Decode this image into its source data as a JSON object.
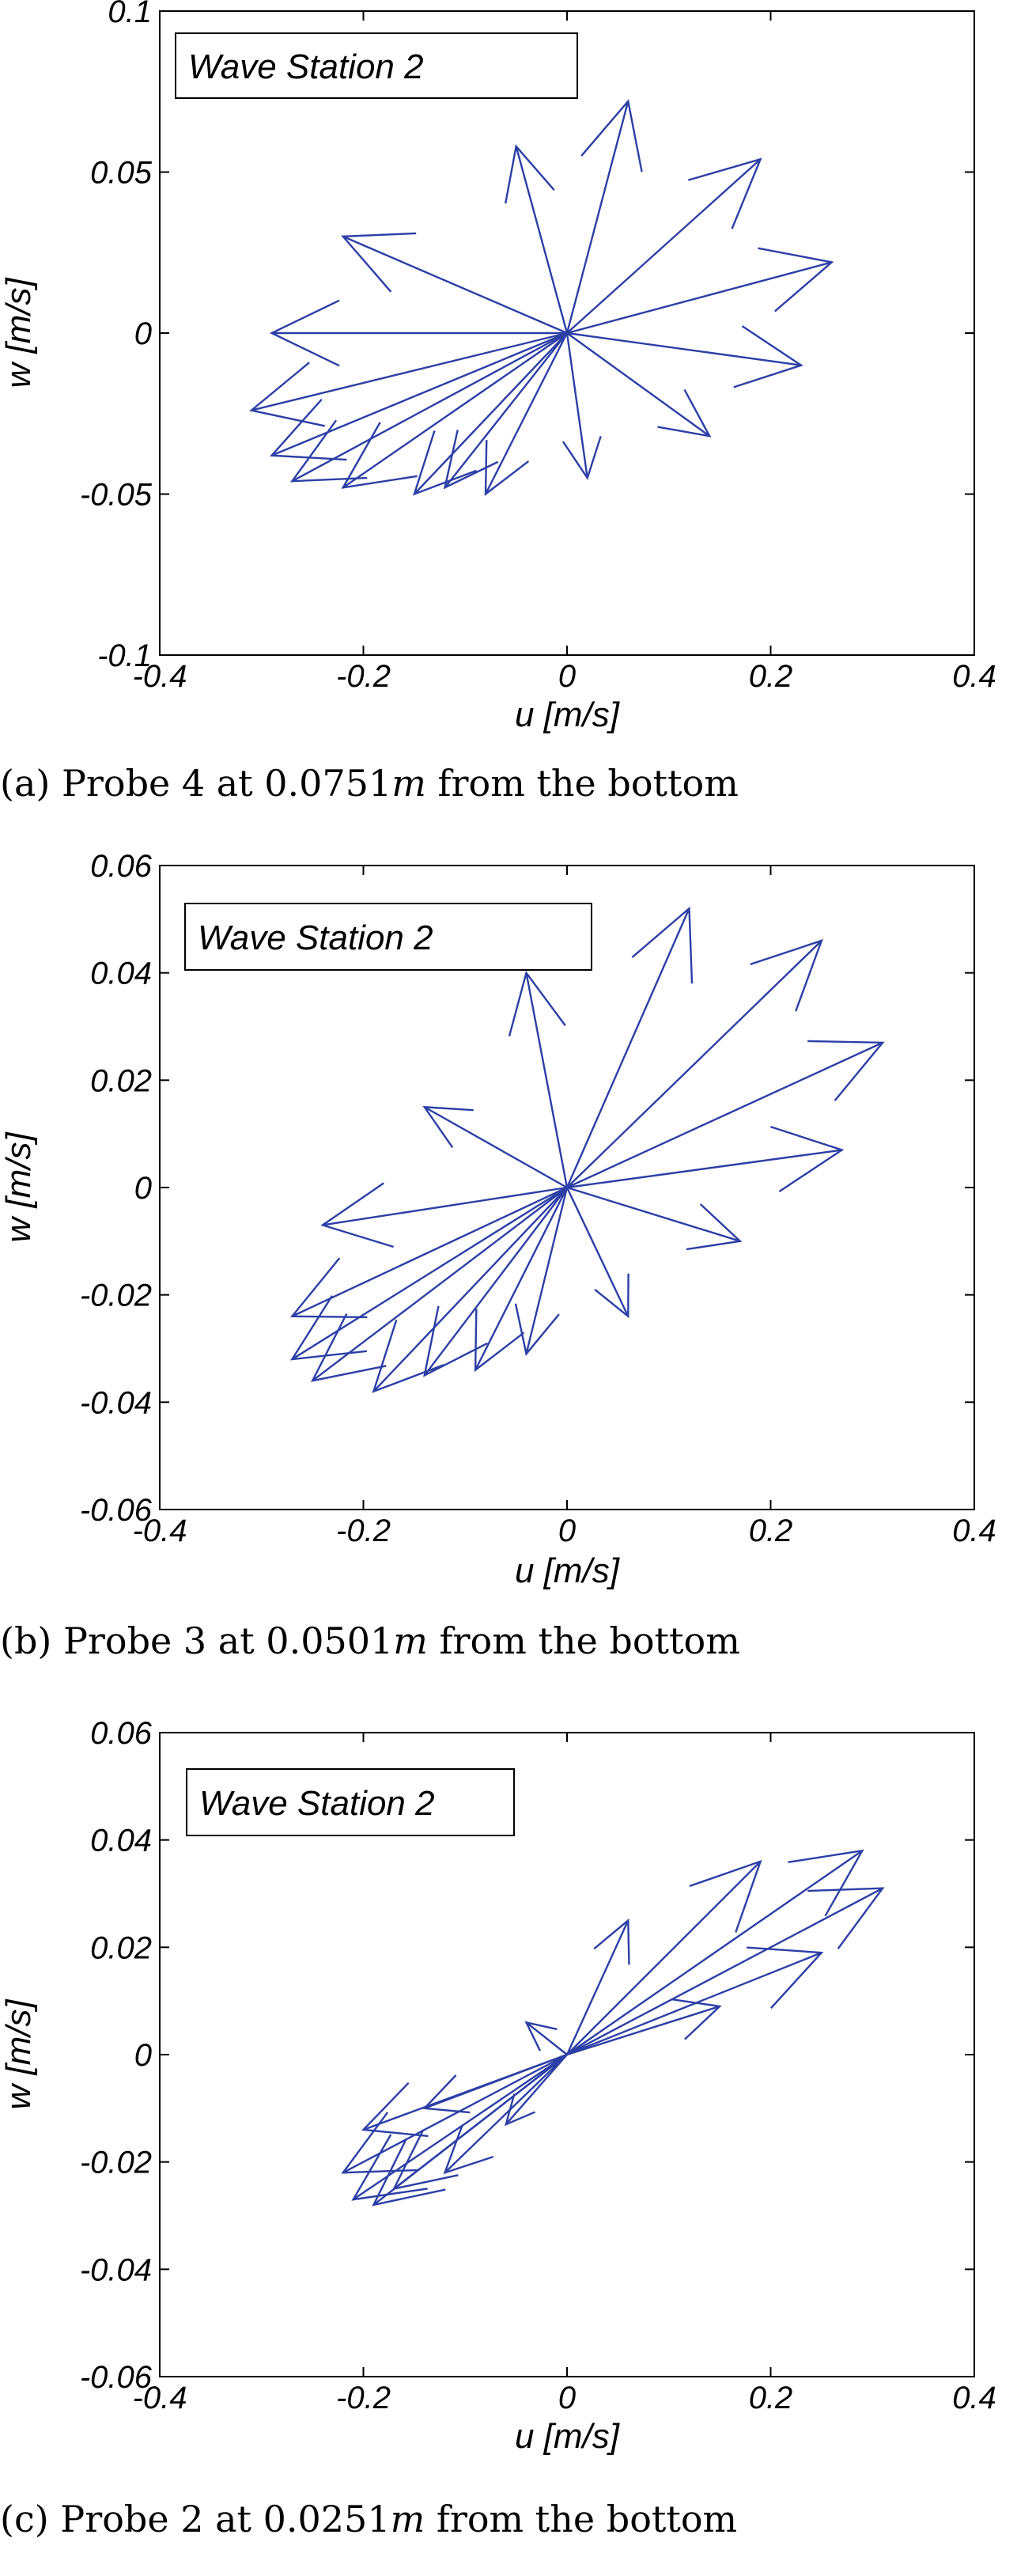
{
  "chart_data": [
    {
      "type": "quiver",
      "legend": "Wave Station 2",
      "xlabel": "u [m/s]",
      "ylabel": "w [m/s]",
      "xlim": [
        -0.4,
        0.4
      ],
      "ylim": [
        -0.1,
        0.1
      ],
      "xticks": [
        "-0.4",
        "-0.2",
        "0",
        "0.2",
        "0.4"
      ],
      "yticks": [
        "-0.1",
        "-0.05",
        "0",
        "0.05",
        "0.1"
      ],
      "caption": {
        "prefix": "(a) Probe 4 at 0.0751",
        "unit": "m",
        "suffix": " from the bottom"
      },
      "vectors": [
        {
          "u": 0.19,
          "w": 0.054
        },
        {
          "u": 0.06,
          "w": 0.072
        },
        {
          "u": -0.05,
          "w": 0.058
        },
        {
          "u": -0.22,
          "w": 0.03
        },
        {
          "u": -0.29,
          "w": 0.0
        },
        {
          "u": -0.31,
          "w": -0.024
        },
        {
          "u": -0.29,
          "w": -0.038
        },
        {
          "u": -0.27,
          "w": -0.046
        },
        {
          "u": -0.22,
          "w": -0.048
        },
        {
          "u": -0.15,
          "w": -0.05
        },
        {
          "u": -0.12,
          "w": -0.048
        },
        {
          "u": -0.08,
          "w": -0.05
        },
        {
          "u": 0.0,
          "w": 0.0
        },
        {
          "u": 0.02,
          "w": -0.045
        },
        {
          "u": 0.14,
          "w": -0.032
        },
        {
          "u": 0.23,
          "w": -0.01
        },
        {
          "u": 0.26,
          "w": 0.022
        }
      ]
    },
    {
      "type": "quiver",
      "legend": "Wave Station 2",
      "xlabel": "u [m/s]",
      "ylabel": "w [m/s]",
      "xlim": [
        -0.4,
        0.4
      ],
      "ylim": [
        -0.06,
        0.06
      ],
      "xticks": [
        "-0.4",
        "-0.2",
        "0",
        "0.2",
        "0.4"
      ],
      "yticks": [
        "-0.06",
        "-0.04",
        "-0.02",
        "0",
        "0.02",
        "0.04",
        "0.06"
      ],
      "caption": {
        "prefix": "(b) Probe 3 at 0.0501",
        "unit": "m",
        "suffix": " from the bottom"
      },
      "vectors": [
        {
          "u": 0.12,
          "w": 0.052
        },
        {
          "u": 0.25,
          "w": 0.046
        },
        {
          "u": 0.31,
          "w": 0.027
        },
        {
          "u": 0.27,
          "w": 0.007
        },
        {
          "u": 0.17,
          "w": -0.01
        },
        {
          "u": 0.06,
          "w": -0.024
        },
        {
          "u": -0.04,
          "w": -0.031
        },
        {
          "u": -0.09,
          "w": -0.034
        },
        {
          "u": -0.14,
          "w": -0.035
        },
        {
          "u": -0.19,
          "w": -0.038
        },
        {
          "u": -0.25,
          "w": -0.036
        },
        {
          "u": -0.27,
          "w": -0.032
        },
        {
          "u": -0.27,
          "w": -0.024
        },
        {
          "u": -0.24,
          "w": -0.007
        },
        {
          "u": -0.14,
          "w": 0.015
        },
        {
          "u": -0.04,
          "w": 0.04
        }
      ]
    },
    {
      "type": "quiver",
      "legend": "Wave Station 2",
      "xlabel": "u [m/s]",
      "ylabel": "w [m/s]",
      "xlim": [
        -0.4,
        0.4
      ],
      "ylim": [
        -0.06,
        0.06
      ],
      "xticks": [
        "-0.4",
        "-0.2",
        "0",
        "0.2",
        "0.4"
      ],
      "yticks": [
        "-0.06",
        "-0.04",
        "-0.02",
        "0",
        "0.02",
        "0.04",
        "0.06"
      ],
      "caption": {
        "prefix": "(c) Probe 2 at 0.0251",
        "unit": "m",
        "suffix": " from the bottom"
      },
      "vectors": [
        {
          "u": 0.06,
          "w": 0.025
        },
        {
          "u": 0.19,
          "w": 0.036
        },
        {
          "u": 0.29,
          "w": 0.038
        },
        {
          "u": 0.31,
          "w": 0.031
        },
        {
          "u": 0.25,
          "w": 0.019
        },
        {
          "u": 0.15,
          "w": 0.009
        },
        {
          "u": -0.04,
          "w": 0.006
        },
        {
          "u": -0.06,
          "w": -0.013
        },
        {
          "u": -0.12,
          "w": -0.022
        },
        {
          "u": -0.17,
          "w": -0.025
        },
        {
          "u": -0.19,
          "w": -0.028
        },
        {
          "u": -0.21,
          "w": -0.027
        },
        {
          "u": -0.22,
          "w": -0.022
        },
        {
          "u": -0.2,
          "w": -0.014
        },
        {
          "u": -0.14,
          "w": -0.01
        }
      ]
    }
  ]
}
